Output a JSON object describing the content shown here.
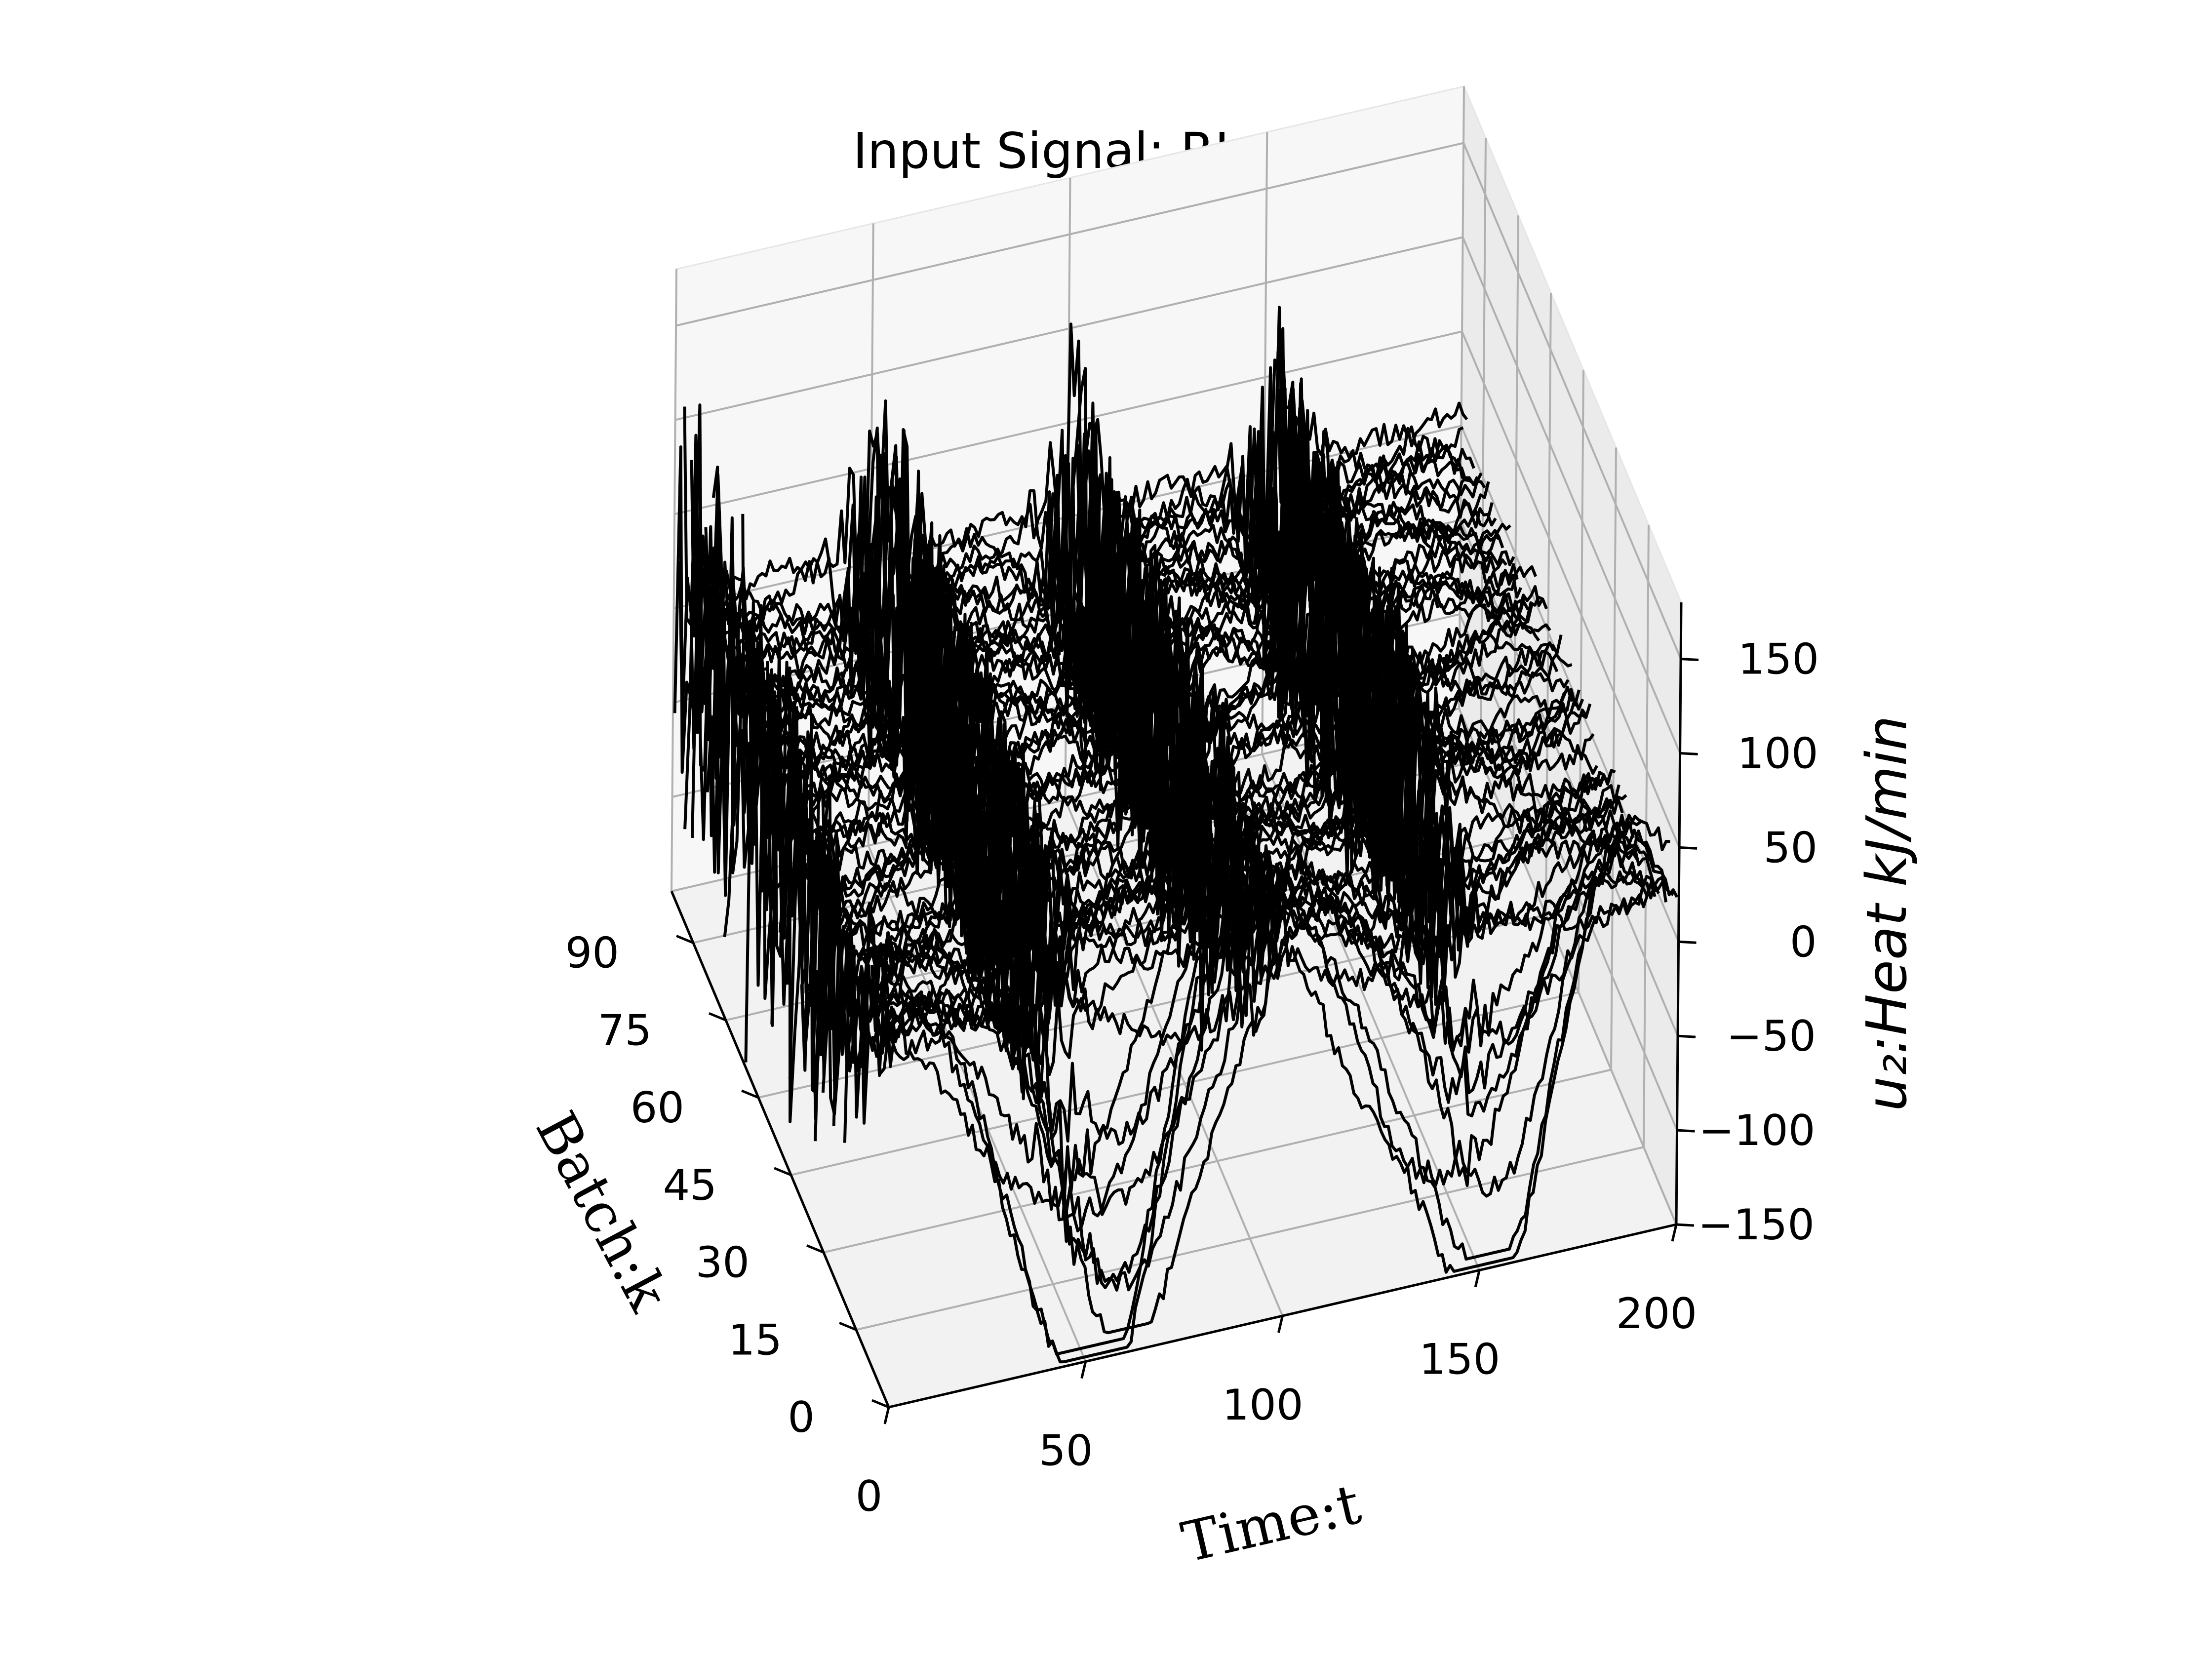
{
  "chart_data": {
    "type": "line",
    "projection": "3d",
    "title": "Input Signal: RL-Cooler",
    "xlabel": "Time:t",
    "ylabel": "Batch:k",
    "zlabel": "u₂:Heat kJ/min",
    "xlim": [
      0,
      200
    ],
    "ylim": [
      0,
      100
    ],
    "zlim": [
      -150,
      180
    ],
    "xticks": [
      0,
      50,
      100,
      150,
      200
    ],
    "xtick_labels": [
      "0",
      "50",
      "100",
      "150",
      "200"
    ],
    "yticks": [
      0,
      15,
      30,
      45,
      60,
      75,
      90
    ],
    "ytick_labels": [
      "0",
      "15",
      "30",
      "45",
      "60",
      "75",
      "90"
    ],
    "zticks": [
      -150,
      -100,
      -50,
      0,
      50,
      100,
      150
    ],
    "ztick_labels": [
      "−150",
      "−100",
      "−50",
      "0",
      "50",
      "100",
      "150"
    ],
    "grid": true,
    "legend": "none",
    "color": "#000000",
    "series_description": "One line per batch k (about 100 batches), plotting heat input u2 versus time t from 0 to 200. Early batches swing between about -150 and +120 with dips near t=60 and t=160; later batches are noisy and stay near 0, with bursts of high-frequency oscillation near t=0, 50, 100 and 150."
  }
}
